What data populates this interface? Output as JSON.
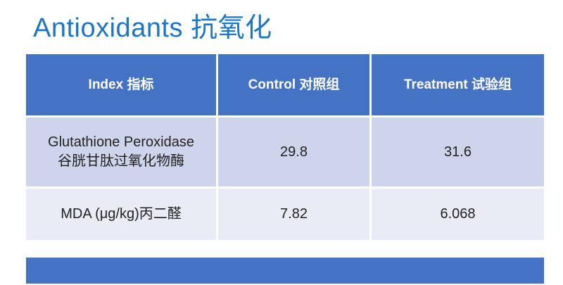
{
  "title": {
    "text": "Antioxidants 抗氧化"
  },
  "table": {
    "columns": [
      {
        "label": "Index 指标"
      },
      {
        "label": "Control 对照组"
      },
      {
        "label": "Treatment 试验组"
      }
    ],
    "rows": [
      {
        "index_en": "Glutathione Peroxidase",
        "index_zh": "谷胱甘肽过氧化物酶",
        "control": "29.8",
        "treatment": "31.6"
      },
      {
        "index_en": "MDA (μg/kg)丙二醛",
        "control": "7.82",
        "treatment": "6.068"
      }
    ]
  },
  "chart_data": {
    "type": "table",
    "title": "Antioxidants 抗氧化",
    "columns": [
      "Index 指标",
      "Control 对照组",
      "Treatment 试验组"
    ],
    "rows": [
      [
        "Glutathione Peroxidase 谷胱甘肽过氧化物酶",
        29.8,
        31.6
      ],
      [
        "MDA (μg/kg)丙二醛",
        7.82,
        6.068
      ]
    ]
  },
  "colors": {
    "title-color": "#1B76C8",
    "header-bg": "#4472C4",
    "header-text": "#FFFFFF",
    "row1-bg": "#CED4E9",
    "row2-bg": "#E9EBF5",
    "body-text": "#222222",
    "accent-bar": "#4472C4",
    "divider": "#FFFFFF"
  }
}
